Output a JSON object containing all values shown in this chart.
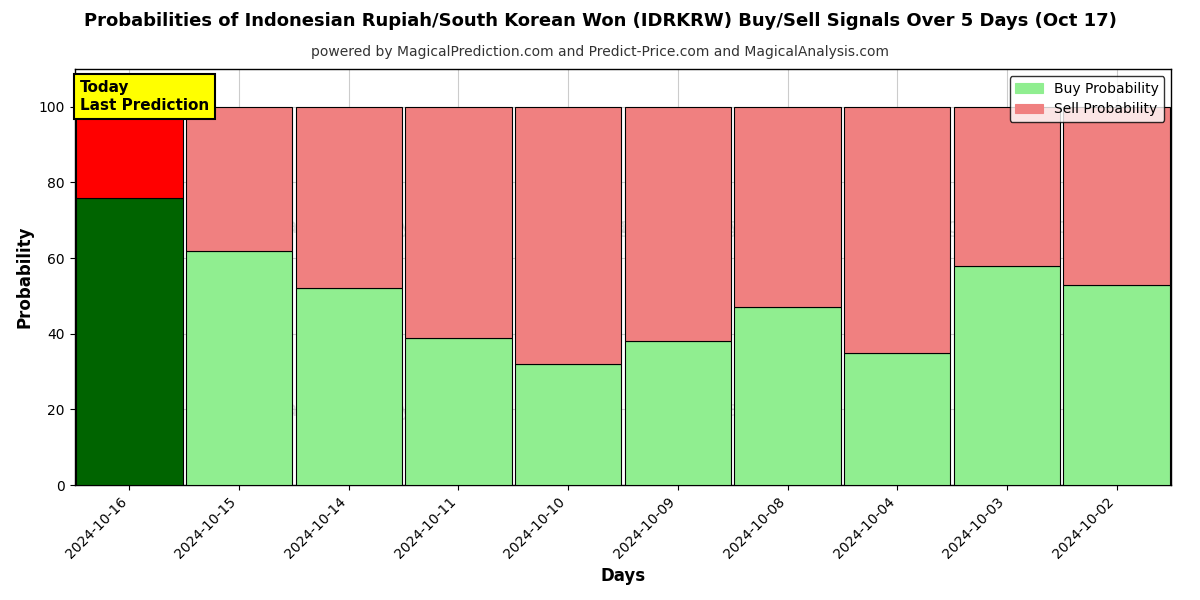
{
  "title": "Probabilities of Indonesian Rupiah/South Korean Won (IDRKRW) Buy/Sell Signals Over 5 Days (Oct 17)",
  "subtitle": "powered by MagicalPrediction.com and Predict-Price.com and MagicalAnalysis.com",
  "xlabel": "Days",
  "ylabel": "Probability",
  "categories": [
    "2024-10-16",
    "2024-10-15",
    "2024-10-14",
    "2024-10-11",
    "2024-10-10",
    "2024-10-09",
    "2024-10-08",
    "2024-10-04",
    "2024-10-03",
    "2024-10-02"
  ],
  "buy_values": [
    76,
    62,
    52,
    39,
    32,
    38,
    47,
    35,
    58,
    53
  ],
  "sell_values": [
    24,
    38,
    48,
    61,
    68,
    62,
    53,
    65,
    42,
    47
  ],
  "today_bar_buy_color": "#006400",
  "today_bar_sell_color": "#FF0000",
  "other_bar_buy_color": "#90EE90",
  "other_bar_sell_color": "#F08080",
  "today_label": "Today\nLast Prediction",
  "today_label_bg": "#FFFF00",
  "ylim": [
    0,
    110
  ],
  "yticks": [
    0,
    20,
    40,
    60,
    80,
    100
  ],
  "dashed_line_y": 110,
  "legend_buy_label": "Buy Probability",
  "legend_sell_label": "Sell Probability",
  "background_color": "#ffffff",
  "grid_color": "#cccccc",
  "bar_edge_color": "#000000",
  "bar_edge_width": 0.8
}
